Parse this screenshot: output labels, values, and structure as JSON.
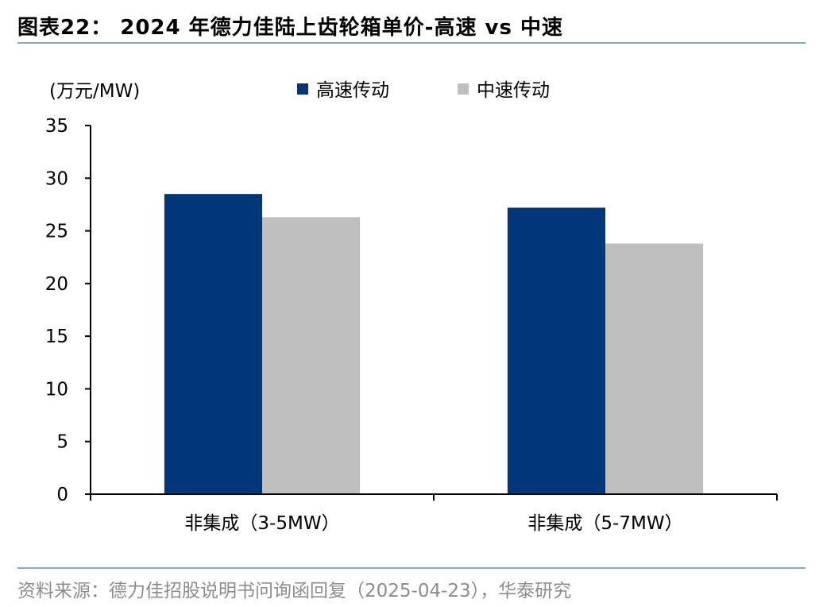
{
  "header": {
    "title": "图表22：  2024 年德力佳陆上齿轮箱单价-高速 vs 中速"
  },
  "footer": {
    "source": "资料来源：德力佳招股说明书问询函回复（2025-04-23），华泰研究"
  },
  "chart_data": {
    "type": "bar",
    "unit_label": "(万元/MW)",
    "categories": [
      "非集成（3-5MW）",
      "非集成（5-7MW）"
    ],
    "series": [
      {
        "name": "高速传动",
        "color": "#003577",
        "values": [
          28.5,
          27.2
        ]
      },
      {
        "name": "中速传动",
        "color": "#bfbfbf",
        "values": [
          26.3,
          23.8
        ]
      }
    ],
    "ylim": [
      0,
      35
    ],
    "yticks": [
      "0",
      "5",
      "10",
      "15",
      "20",
      "25",
      "30",
      "35"
    ],
    "grid": false,
    "legend_position": "top"
  }
}
